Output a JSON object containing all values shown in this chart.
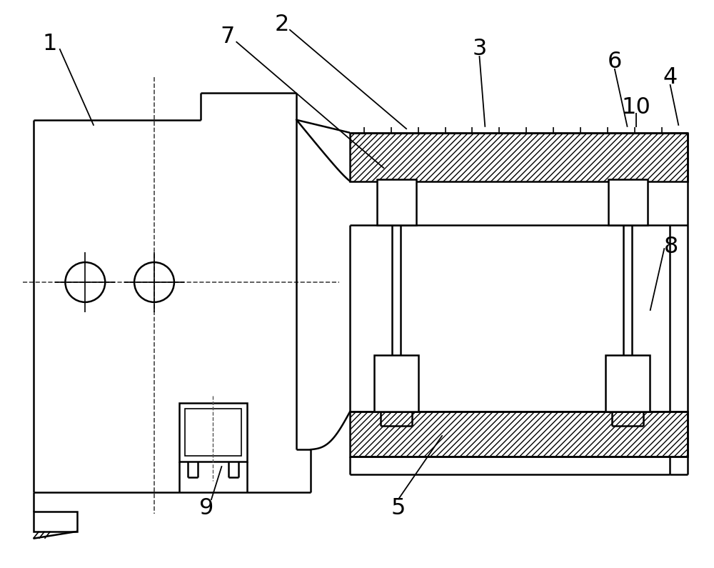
{
  "background_color": "#ffffff",
  "line_color": "#000000",
  "fig_width": 10.0,
  "fig_height": 7.95,
  "lw": 1.8
}
